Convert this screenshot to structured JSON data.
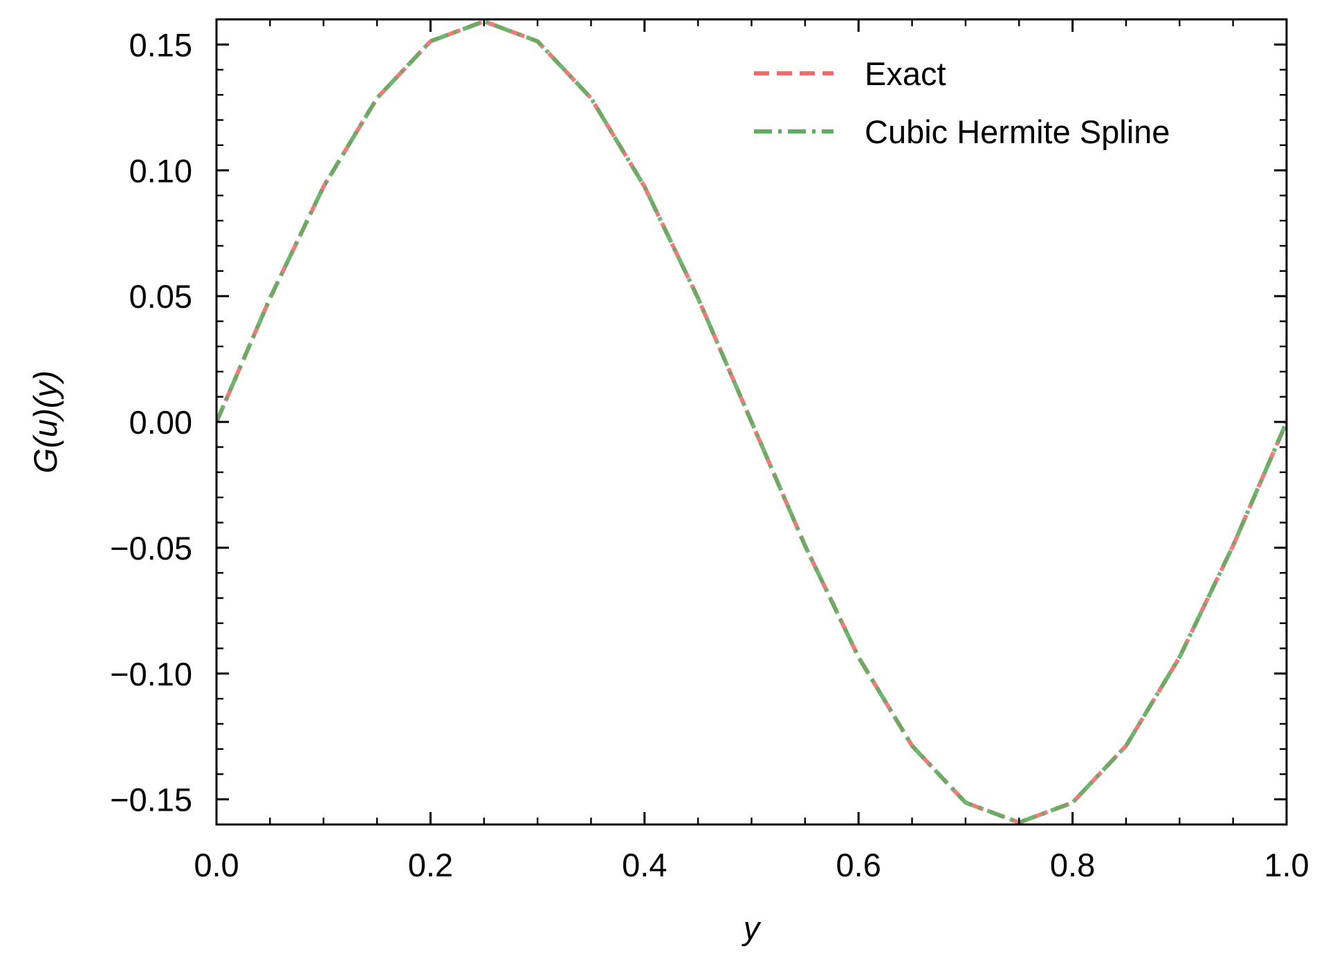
{
  "chart_data": {
    "type": "line",
    "title": "",
    "xlabel": "y",
    "ylabel": "G(u)(y)",
    "xlim": [
      0.0,
      1.0
    ],
    "ylim": [
      -0.16,
      0.16
    ],
    "x_ticks": [
      0.0,
      0.2,
      0.4,
      0.6,
      0.8,
      1.0
    ],
    "x_tick_labels": [
      "0.0",
      "0.2",
      "0.4",
      "0.6",
      "0.8",
      "1.0"
    ],
    "y_ticks": [
      -0.15,
      -0.1,
      -0.05,
      0.0,
      0.05,
      0.1,
      0.15
    ],
    "y_tick_labels": [
      "−0.15",
      "−0.10",
      "−0.05",
      "0.00",
      "0.05",
      "0.10",
      "0.15"
    ],
    "grid": false,
    "legend_position": "top-right",
    "x": [
      0.0,
      0.05,
      0.1,
      0.15,
      0.2,
      0.25,
      0.3,
      0.35,
      0.4,
      0.45,
      0.5,
      0.55,
      0.6,
      0.65,
      0.7,
      0.75,
      0.8,
      0.85,
      0.9,
      0.95,
      1.0
    ],
    "series": [
      {
        "name": "Exact",
        "style": "dashed",
        "color": "#f26b6b",
        "values": [
          0.0,
          0.0492,
          0.0935,
          0.1287,
          0.1513,
          0.1592,
          0.1513,
          0.1287,
          0.0935,
          0.0492,
          0.0,
          -0.0492,
          -0.0935,
          -0.1287,
          -0.1513,
          -0.1592,
          -0.1513,
          -0.1287,
          -0.0935,
          -0.0492,
          0.0
        ]
      },
      {
        "name": "Cubic Hermite Spline",
        "style": "dashdot",
        "color": "#5fad5f",
        "values": [
          0.0,
          0.0492,
          0.0935,
          0.1287,
          0.1513,
          0.1592,
          0.1513,
          0.1287,
          0.0935,
          0.0492,
          0.0,
          -0.0492,
          -0.0935,
          -0.1287,
          -0.1513,
          -0.1592,
          -0.1513,
          -0.1287,
          -0.0935,
          -0.0492,
          0.0
        ]
      }
    ]
  }
}
